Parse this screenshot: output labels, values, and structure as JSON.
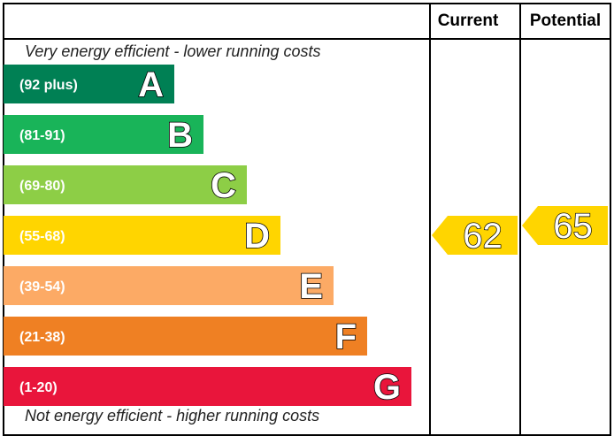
{
  "header": {
    "current": "Current",
    "potential": "Potential"
  },
  "notes": {
    "top": "Very energy efficient - lower running costs",
    "bottom": "Not energy efficient - higher running costs"
  },
  "chart_data": {
    "type": "bar",
    "categories": [
      "A",
      "B",
      "C",
      "D",
      "E",
      "F",
      "G"
    ],
    "bands": [
      {
        "letter": "A",
        "range": "(92 plus)",
        "min": 92,
        "max": 100,
        "color": "#008054"
      },
      {
        "letter": "B",
        "range": "(81-91)",
        "min": 81,
        "max": 91,
        "color": "#19b459"
      },
      {
        "letter": "C",
        "range": "(69-80)",
        "min": 69,
        "max": 80,
        "color": "#8dce46"
      },
      {
        "letter": "D",
        "range": "(55-68)",
        "min": 55,
        "max": 68,
        "color": "#ffd500"
      },
      {
        "letter": "E",
        "range": "(39-54)",
        "min": 39,
        "max": 54,
        "color": "#fcaa65"
      },
      {
        "letter": "F",
        "range": "(21-38)",
        "min": 21,
        "max": 38,
        "color": "#ef8023"
      },
      {
        "letter": "G",
        "range": "(1-20)",
        "min": 1,
        "max": 20,
        "color": "#e9153b"
      }
    ],
    "current": {
      "value": 62,
      "label": "62",
      "band": "D",
      "color": "#ffd500"
    },
    "potential": {
      "value": 65,
      "label": "65",
      "band": "D",
      "color": "#ffd500"
    }
  }
}
